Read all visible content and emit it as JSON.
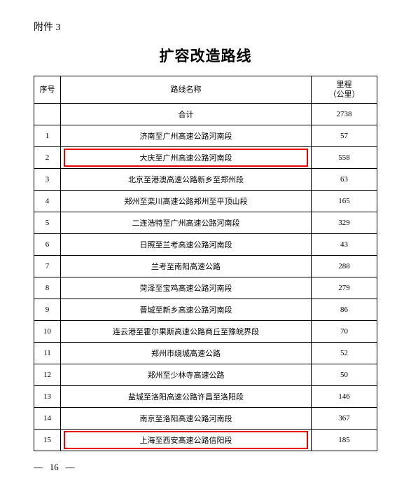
{
  "attachment_label": "附件 3",
  "title": "扩容改造路线",
  "table": {
    "columns": {
      "seq": "序号",
      "name": "路线名称",
      "mileage_line1": "里程",
      "mileage_line2": "（公里）"
    },
    "total_row": {
      "label": "合计",
      "value": "2738"
    },
    "rows": [
      {
        "seq": "1",
        "name": "济南至广州高速公路河南段",
        "mileage": "57",
        "highlight": false
      },
      {
        "seq": "2",
        "name": "大庆至广州高速公路河南段",
        "mileage": "558",
        "highlight": true
      },
      {
        "seq": "3",
        "name": "北京至港澳高速公路新乡至郑州段",
        "mileage": "63",
        "highlight": false
      },
      {
        "seq": "4",
        "name": "郑州至栾川高速公路郑州至平顶山段",
        "mileage": "165",
        "highlight": false
      },
      {
        "seq": "5",
        "name": "二连浩特至广州高速公路河南段",
        "mileage": "329",
        "highlight": false
      },
      {
        "seq": "6",
        "name": "日照至兰考高速公路河南段",
        "mileage": "43",
        "highlight": false
      },
      {
        "seq": "7",
        "name": "兰考至南阳高速公路",
        "mileage": "288",
        "highlight": false
      },
      {
        "seq": "8",
        "name": "菏泽至宝鸡高速公路河南段",
        "mileage": "279",
        "highlight": false
      },
      {
        "seq": "9",
        "name": "晋城至新乡高速公路河南段",
        "mileage": "86",
        "highlight": false
      },
      {
        "seq": "10",
        "name": "连云港至霍尔果斯高速公路商丘至豫皖界段",
        "mileage": "70",
        "highlight": false
      },
      {
        "seq": "11",
        "name": "郑州市绕城高速公路",
        "mileage": "52",
        "highlight": false
      },
      {
        "seq": "12",
        "name": "郑州至少林寺高速公路",
        "mileage": "50",
        "highlight": false
      },
      {
        "seq": "13",
        "name": "盐城至洛阳高速公路许昌至洛阳段",
        "mileage": "146",
        "highlight": false
      },
      {
        "seq": "14",
        "name": "南京至洛阳高速公路河南段",
        "mileage": "367",
        "highlight": false
      },
      {
        "seq": "15",
        "name": "上海至西安高速公路信阳段",
        "mileage": "185",
        "highlight": true
      }
    ],
    "highlight_color": "#e80000"
  },
  "page_number": "16",
  "page_dash": "—"
}
